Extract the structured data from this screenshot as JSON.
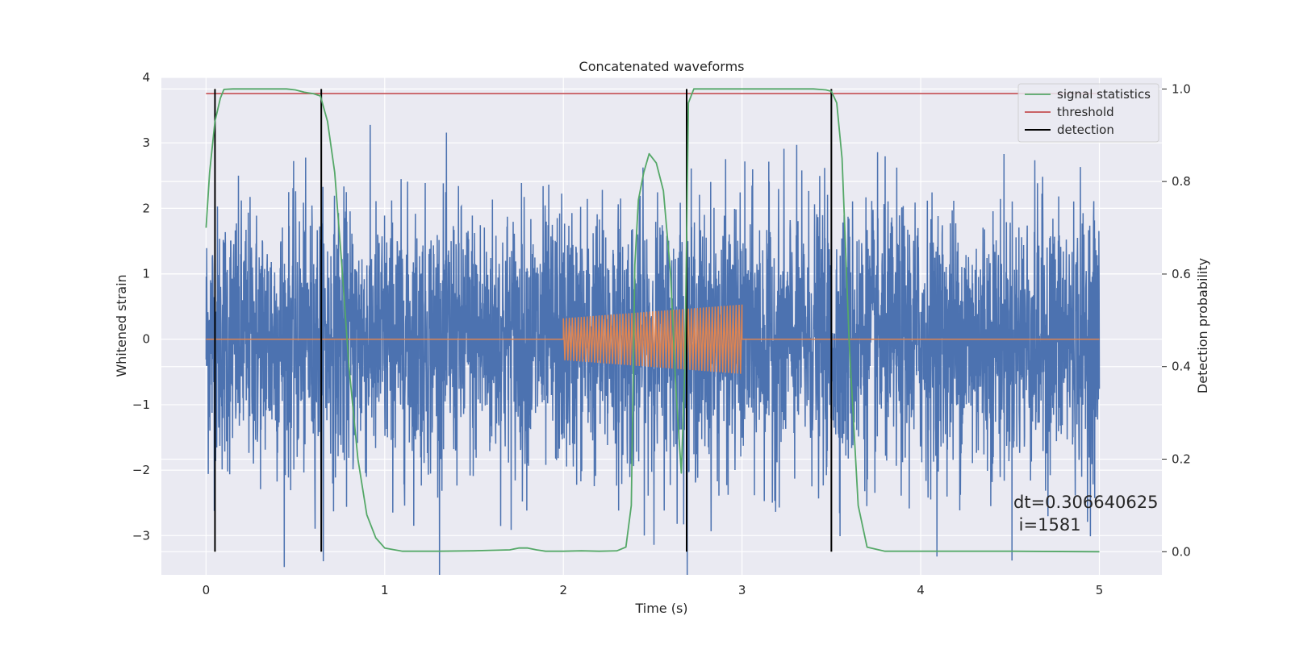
{
  "chart_data": {
    "type": "line",
    "title": "Concatenated waveforms",
    "xlabel": "Time (s)",
    "ylabel": "Whitened strain",
    "y2label": "Detection probability",
    "xlim": [
      -0.25,
      5.35
    ],
    "ylim": [
      -3.6,
      4.0
    ],
    "y2lim": [
      -0.05,
      1.025
    ],
    "xticks": [
      0,
      1,
      2,
      3,
      4,
      5
    ],
    "yticks": [
      -3,
      -2,
      -1,
      0,
      1,
      2,
      3,
      4
    ],
    "y2ticks": [
      0.0,
      0.2,
      0.4,
      0.6,
      0.8,
      1.0
    ],
    "grid": true,
    "legend_position": "top-right",
    "background": "#eaeaf2",
    "series": [
      {
        "kind": "noise",
        "color": "#4c72b0",
        "x_range": [
          0,
          5
        ],
        "typical_amplitude": 1.0,
        "peak_amplitude": 3.6,
        "samples": 4000
      },
      {
        "kind": "chirp",
        "color": "#dd8452",
        "baseline": 0.0,
        "x_range": [
          2,
          3
        ],
        "start_amplitude": 0.32,
        "end_amplitude": 0.53
      },
      {
        "name": "signal statistics",
        "axis": "right",
        "color": "#55a868",
        "x": [
          0,
          0.02,
          0.05,
          0.08,
          0.1,
          0.15,
          0.3,
          0.45,
          0.5,
          0.55,
          0.6,
          0.64,
          0.68,
          0.72,
          0.76,
          0.8,
          0.85,
          0.9,
          0.95,
          1.0,
          1.1,
          1.3,
          1.5,
          1.7,
          1.75,
          1.8,
          1.85,
          1.9,
          2.0,
          2.1,
          2.2,
          2.3,
          2.35,
          2.38,
          2.4,
          2.42,
          2.45,
          2.48,
          2.52,
          2.56,
          2.6,
          2.63,
          2.66,
          2.68,
          2.7,
          2.73,
          2.8,
          3.0,
          3.2,
          3.4,
          3.47,
          3.5,
          3.53,
          3.56,
          3.6,
          3.65,
          3.7,
          3.8,
          4.0,
          4.5,
          5.0
        ],
        "y": [
          0.7,
          0.82,
          0.93,
          0.98,
          0.999,
          1.0,
          1.0,
          1.0,
          0.998,
          0.993,
          0.99,
          0.985,
          0.93,
          0.82,
          0.62,
          0.4,
          0.2,
          0.08,
          0.03,
          0.008,
          0.001,
          0.001,
          0.002,
          0.004,
          0.008,
          0.008,
          0.004,
          0.001,
          0.001,
          0.002,
          0.001,
          0.002,
          0.01,
          0.1,
          0.62,
          0.76,
          0.82,
          0.86,
          0.84,
          0.78,
          0.6,
          0.35,
          0.17,
          0.4,
          0.97,
          1.0,
          1.0,
          1.0,
          1.0,
          1.0,
          0.998,
          0.995,
          0.97,
          0.85,
          0.45,
          0.1,
          0.01,
          0.001,
          0.001,
          0.001,
          0.0
        ]
      },
      {
        "name": "threshold",
        "axis": "right",
        "color": "#c44e52",
        "x": [
          0,
          5
        ],
        "y": [
          0.99,
          0.99
        ]
      },
      {
        "name": "detection",
        "axis": "right",
        "color": "#000000",
        "x_positions": [
          0.05,
          0.645,
          2.69,
          3.5
        ],
        "y_range": [
          0,
          1.0
        ]
      }
    ],
    "legend": [
      "signal statistics",
      "threshold",
      "detection"
    ],
    "annotation_line1": "dt=0.306640625",
    "annotation_line2": " i=1581"
  }
}
